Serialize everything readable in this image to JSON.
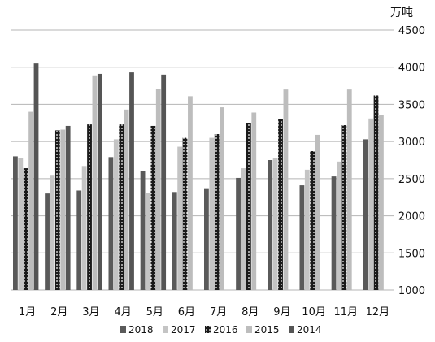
{
  "chart_data": {
    "type": "bar",
    "title": "",
    "unit_label": "万吨",
    "xlabel": "",
    "ylabel": "",
    "ylim": [
      1000,
      4500
    ],
    "yticks": [
      1000,
      1500,
      2000,
      2500,
      3000,
      3500,
      4000,
      4500
    ],
    "grid": true,
    "legend_position": "bottom",
    "categories": [
      "1月",
      "2月",
      "3月",
      "4月",
      "5月",
      "6月",
      "7月",
      "8月",
      "9月",
      "10月",
      "11月",
      "12月"
    ],
    "series": [
      {
        "name": "2018",
        "color": "#5a5a5a",
        "pattern": "solid",
        "values": [
          2800,
          2300,
          2340,
          2790,
          2600,
          2320,
          2360,
          2510,
          2750,
          2410,
          2530,
          3030
        ]
      },
      {
        "name": "2017",
        "color": "#c4c4c4",
        "pattern": "solid",
        "values": [
          2780,
          2540,
          2670,
          3030,
          2310,
          2930,
          3050,
          2640,
          2780,
          2620,
          2730,
          3310
        ]
      },
      {
        "name": "2016",
        "color": "#1a1a1a",
        "pattern": "dotted",
        "values": [
          2640,
          3150,
          3230,
          3230,
          3210,
          3050,
          3100,
          3250,
          3300,
          2870,
          3220,
          3620
        ]
      },
      {
        "name": "2015",
        "color": "#bdbdbd",
        "pattern": "solid",
        "values": [
          3400,
          3160,
          3890,
          3430,
          3710,
          3610,
          3460,
          3390,
          3700,
          3090,
          3700,
          3360
        ]
      },
      {
        "name": "2014",
        "color": "#555555",
        "pattern": "solid",
        "values": [
          4050,
          3210,
          3910,
          3930,
          3900,
          null,
          null,
          null,
          null,
          null,
          null,
          null
        ]
      }
    ]
  }
}
